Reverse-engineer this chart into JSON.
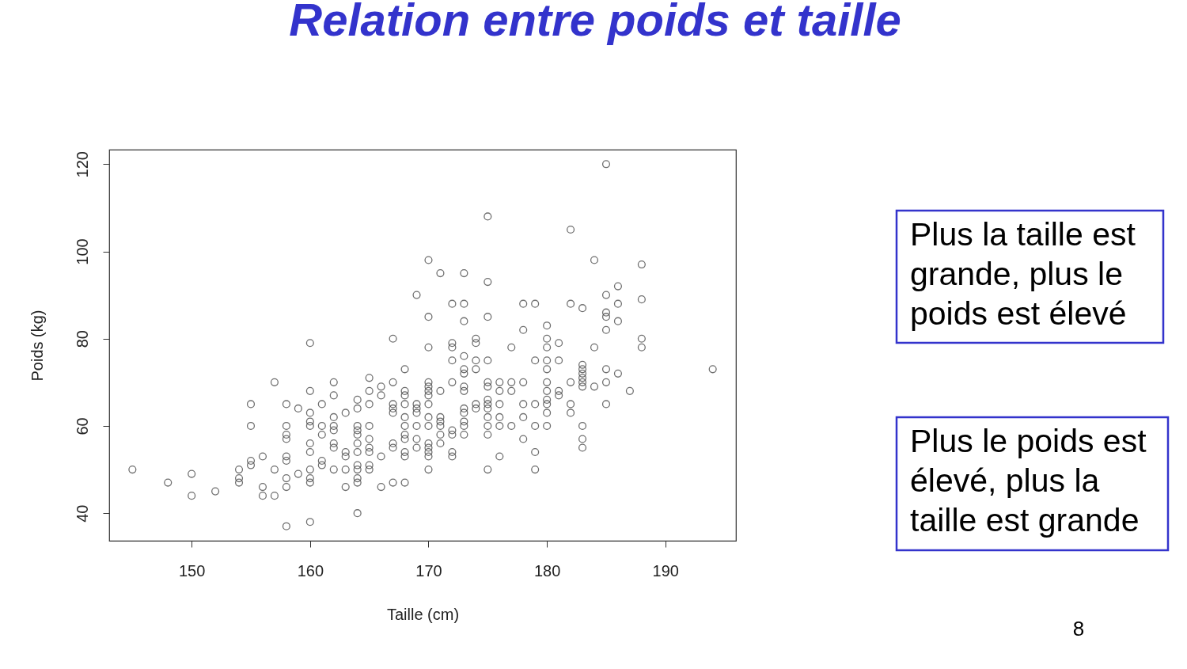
{
  "chart_data": {
    "type": "scatter",
    "title": "Relation entre poids et taille",
    "xlabel": "Taille (cm)",
    "ylabel": "Poids (kg)",
    "annotations": [
      "Plus la taille est\ngrande, plus le\npoids est élevé",
      "Plus le poids est\nélevé, plus la\ntaille est grande",
      "8"
    ],
    "x": [
      145,
      148,
      150,
      150,
      152,
      154,
      154,
      154,
      155,
      155,
      155,
      155,
      156,
      156,
      156,
      157,
      157,
      157,
      158,
      158,
      158,
      158,
      158,
      158,
      158,
      158,
      158,
      159,
      159,
      160,
      160,
      160,
      160,
      160,
      160,
      160,
      160,
      160,
      160,
      160,
      161,
      161,
      161,
      161,
      161,
      162,
      162,
      162,
      162,
      162,
      162,
      162,
      162,
      163,
      163,
      163,
      163,
      163,
      164,
      164,
      164,
      164,
      164,
      164,
      164,
      164,
      164,
      164,
      164,
      164,
      165,
      165,
      165,
      165,
      165,
      165,
      165,
      165,
      165,
      166,
      166,
      166,
      166,
      167,
      167,
      167,
      167,
      167,
      167,
      167,
      167,
      168,
      168,
      168,
      168,
      168,
      168,
      168,
      168,
      168,
      168,
      168,
      169,
      169,
      169,
      169,
      169,
      169,
      169,
      170,
      170,
      170,
      170,
      170,
      170,
      170,
      170,
      170,
      170,
      170,
      170,
      170,
      170,
      170,
      171,
      171,
      171,
      171,
      171,
      171,
      171,
      172,
      172,
      172,
      172,
      172,
      172,
      172,
      172,
      172,
      173,
      173,
      173,
      173,
      173,
      173,
      173,
      173,
      173,
      173,
      173,
      173,
      173,
      174,
      174,
      174,
      174,
      174,
      174,
      175,
      175,
      175,
      175,
      175,
      175,
      175,
      175,
      175,
      175,
      175,
      175,
      175,
      176,
      176,
      176,
      176,
      176,
      176,
      177,
      177,
      177,
      177,
      178,
      178,
      178,
      178,
      178,
      178,
      179,
      179,
      179,
      179,
      179,
      179,
      180,
      180,
      180,
      180,
      180,
      180,
      180,
      180,
      180,
      180,
      180,
      181,
      181,
      181,
      181,
      182,
      182,
      182,
      182,
      182,
      183,
      183,
      183,
      183,
      183,
      183,
      183,
      183,
      183,
      183,
      184,
      184,
      184,
      185,
      185,
      185,
      185,
      185,
      185,
      185,
      185,
      186,
      186,
      186,
      186,
      187,
      188,
      188,
      188,
      188,
      194
    ],
    "values": [
      50,
      47,
      49,
      44,
      45,
      50,
      48,
      47,
      65,
      60,
      52,
      51,
      53,
      46,
      44,
      70,
      50,
      44,
      65,
      60,
      58,
      57,
      53,
      52,
      48,
      46,
      37,
      64,
      49,
      79,
      68,
      63,
      61,
      60,
      56,
      54,
      50,
      48,
      47,
      38,
      65,
      60,
      58,
      52,
      51,
      70,
      67,
      62,
      60,
      59,
      56,
      55,
      50,
      63,
      54,
      53,
      50,
      46,
      66,
      64,
      60,
      59,
      58,
      56,
      54,
      51,
      50,
      48,
      47,
      40,
      71,
      68,
      65,
      60,
      57,
      55,
      54,
      51,
      50,
      69,
      67,
      53,
      46,
      80,
      70,
      65,
      64,
      63,
      56,
      55,
      47,
      73,
      68,
      67,
      65,
      62,
      60,
      58,
      57,
      54,
      53,
      47,
      90,
      65,
      64,
      63,
      60,
      57,
      55,
      98,
      85,
      78,
      70,
      69,
      68,
      67,
      65,
      62,
      60,
      56,
      55,
      54,
      53,
      50,
      95,
      68,
      62,
      61,
      60,
      58,
      56,
      88,
      79,
      78,
      75,
      70,
      59,
      58,
      54,
      53,
      95,
      88,
      84,
      76,
      73,
      72,
      69,
      68,
      64,
      63,
      61,
      60,
      58,
      80,
      79,
      75,
      73,
      65,
      64,
      108,
      93,
      85,
      75,
      70,
      69,
      66,
      65,
      64,
      62,
      60,
      58,
      50,
      70,
      68,
      65,
      62,
      60,
      53,
      78,
      70,
      68,
      60,
      88,
      82,
      70,
      65,
      62,
      57,
      88,
      75,
      65,
      60,
      54,
      50,
      83,
      80,
      78,
      75,
      73,
      70,
      68,
      66,
      65,
      63,
      60,
      79,
      75,
      68,
      67,
      105,
      88,
      70,
      65,
      63,
      87,
      74,
      73,
      72,
      71,
      70,
      69,
      60,
      57,
      55,
      98,
      78,
      69,
      120,
      90,
      86,
      85,
      82,
      73,
      70,
      65,
      92,
      88,
      84,
      72,
      68,
      97,
      89,
      80,
      78,
      73
    ],
    "color": "#333333",
    "marker": "circle",
    "xlim": [
      143.04,
      195.96
    ],
    "ylim": [
      33.68,
      123.32
    ],
    "xticks": [
      150,
      160,
      170,
      180,
      190
    ],
    "yticks": [
      40,
      60,
      80,
      100,
      120
    ]
  }
}
